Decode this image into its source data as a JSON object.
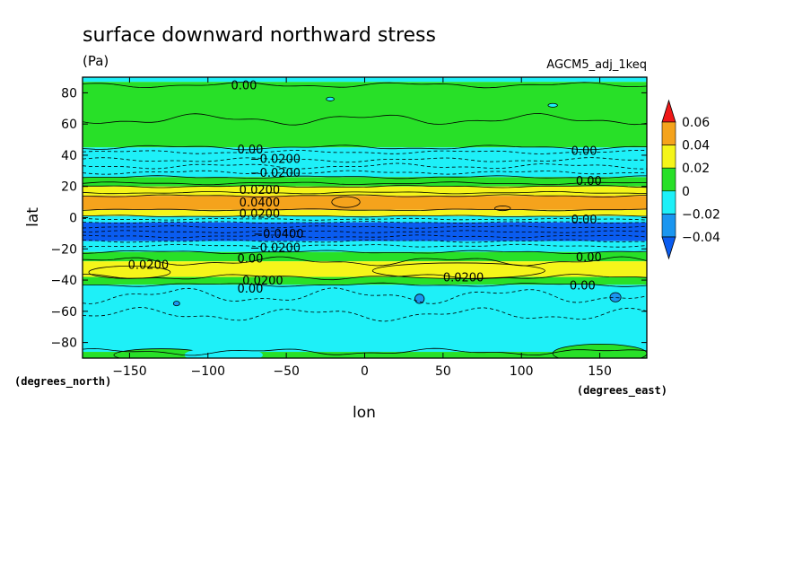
{
  "chart_data": {
    "type": "contour",
    "title": "surface downward northward stress",
    "units": "(Pa)",
    "model_label": "AGCM5_adj_1keq",
    "xlabel": "lon",
    "ylabel": "lat",
    "x_units_label": "(degrees_east)",
    "y_units_label": "(degrees_north)",
    "xlim": [
      -180,
      180
    ],
    "ylim": [
      -90,
      90
    ],
    "x_ticks": [
      -150,
      -100,
      -50,
      0,
      50,
      100,
      150
    ],
    "y_ticks": [
      80,
      60,
      40,
      20,
      0,
      -20,
      -40,
      -60,
      -80
    ],
    "colorbar": {
      "levels": [
        0.06,
        0.04,
        0.02,
        0,
        -0.02,
        -0.04
      ],
      "level_labels": [
        "0.06",
        "0.04",
        "0.02",
        "0",
        "−0.02",
        "−0.04"
      ],
      "colors": [
        "#f01818",
        "#f5a31c",
        "#f5f51a",
        "#28e028",
        "#1ef0f8",
        "#1a96f0",
        "#0a5cf0"
      ],
      "over_color": "#f01818",
      "under_color": "#0a5cf0"
    },
    "zonal_bands": [
      {
        "lat_from": 90,
        "lat_to": 87,
        "color": "#1ef0f8"
      },
      {
        "lat_from": 87,
        "lat_to": 45,
        "color": "#28e028"
      },
      {
        "lat_from": 45,
        "lat_to": 26,
        "color": "#1ef0f8"
      },
      {
        "lat_from": 26,
        "lat_to": 20,
        "color": "#28e028"
      },
      {
        "lat_from": 20,
        "lat_to": 14,
        "color": "#f5f51a"
      },
      {
        "lat_from": 14,
        "lat_to": 5,
        "color": "#f5a31c"
      },
      {
        "lat_from": 5,
        "lat_to": 1,
        "color": "#f5f51a"
      },
      {
        "lat_from": 1,
        "lat_to": -3,
        "color": "#1ef0f8"
      },
      {
        "lat_from": -3,
        "lat_to": -15,
        "color": "#0a5cf0"
      },
      {
        "lat_from": -15,
        "lat_to": -22,
        "color": "#1ef0f8"
      },
      {
        "lat_from": -22,
        "lat_to": -28,
        "color": "#28e028"
      },
      {
        "lat_from": -28,
        "lat_to": -38,
        "color": "#f5f51a"
      },
      {
        "lat_from": -38,
        "lat_to": -43,
        "color": "#28e028"
      },
      {
        "lat_from": -43,
        "lat_to": -86,
        "color": "#1ef0f8"
      },
      {
        "lat_from": -86,
        "lat_to": -90,
        "color": "#28e028"
      }
    ],
    "contour_labels": [
      {
        "text": "0.00",
        "lon": -77,
        "lat": 85
      },
      {
        "text": "0.00",
        "lon": -73,
        "lat": 44
      },
      {
        "text": "−0.0200",
        "lon": -57,
        "lat": 38
      },
      {
        "text": "−0.0200",
        "lon": -57,
        "lat": 29
      },
      {
        "text": "0.00",
        "lon": 140,
        "lat": 43
      },
      {
        "text": "0.00",
        "lon": 143,
        "lat": 24
      },
      {
        "text": "0.0200",
        "lon": -67,
        "lat": 18
      },
      {
        "text": "0.0400",
        "lon": -67,
        "lat": 10
      },
      {
        "text": "0.0200",
        "lon": -67,
        "lat": 3
      },
      {
        "text": "0.00",
        "lon": 140,
        "lat": -1
      },
      {
        "text": "−0.0400",
        "lon": -55,
        "lat": -10
      },
      {
        "text": "−0.0200",
        "lon": -57,
        "lat": -19
      },
      {
        "text": "0.00",
        "lon": 143,
        "lat": -25
      },
      {
        "text": "0.00",
        "lon": -73,
        "lat": -26
      },
      {
        "text": "0.0200",
        "lon": -138,
        "lat": -30
      },
      {
        "text": "0.0200",
        "lon": -65,
        "lat": -40
      },
      {
        "text": "0.00",
        "lon": -73,
        "lat": -45
      },
      {
        "text": "0.0200",
        "lon": 63,
        "lat": -38
      },
      {
        "text": "0.00",
        "lon": 139,
        "lat": -43
      }
    ]
  }
}
